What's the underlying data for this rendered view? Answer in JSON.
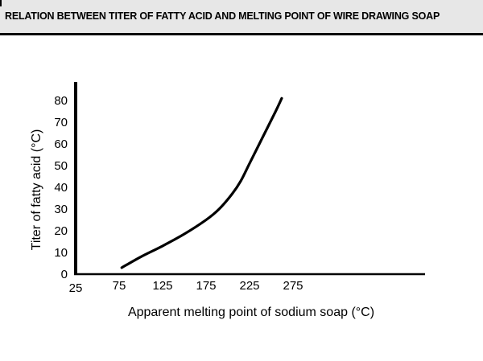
{
  "header": {
    "title": "RELATION BETWEEN TITER OF FATTY ACID AND MELTING POINT OF WIRE DRAWING SOAP"
  },
  "chart_data": {
    "type": "line",
    "title": "RELATION BETWEEN TITER OF FATTY ACID AND MELTING POINT OF WIRE DRAWING SOAP",
    "xlabel": "Apparent melting point of sodium soap (°C)",
    "ylabel": "Titer of fatty acid (°C)",
    "x_ticks": [
      "25",
      "75",
      "125",
      "175",
      "225",
      "275"
    ],
    "y_ticks": [
      "0",
      "10",
      "20",
      "30",
      "40",
      "50",
      "60",
      "70",
      "80"
    ],
    "xlim": [
      25,
      275
    ],
    "ylim": [
      0,
      80
    ],
    "grid": false,
    "series": [
      {
        "x": [
          78,
          100,
          125,
          150,
          175,
          190,
          205,
          215,
          225,
          240,
          255,
          262
        ],
        "y": [
          3,
          8,
          13,
          18.5,
          25,
          30,
          37,
          43,
          51,
          63,
          75,
          81
        ]
      }
    ],
    "line_color": "#000000"
  }
}
